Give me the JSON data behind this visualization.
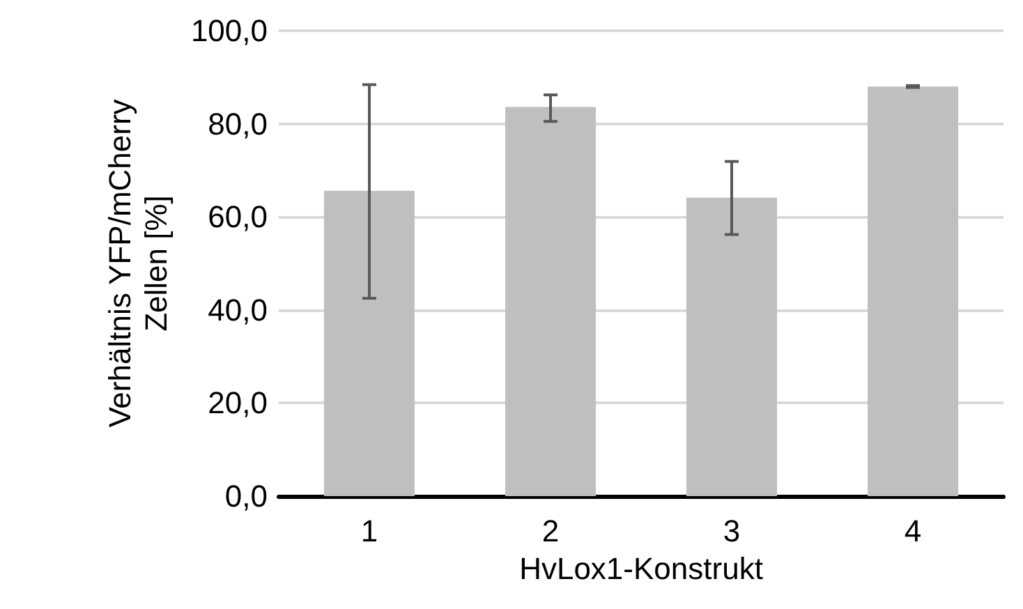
{
  "chart_data": {
    "type": "bar",
    "xlabel": "HvLox1-Konstrukt",
    "ylabel": "Verhältnis YFP/mCherry\nZellen [%]",
    "categories": [
      "1",
      "2",
      "3",
      "4"
    ],
    "values": [
      65.6,
      83.6,
      64.1,
      88.0
    ],
    "errors": [
      [
        42.5,
        88.4
      ],
      [
        80.5,
        86.2
      ],
      [
        56.2,
        71.9
      ],
      [
        87.8,
        88.2
      ]
    ],
    "color": "#bfbfbf",
    "ylim": [
      0,
      100
    ],
    "yticks": [
      {
        "value": 0,
        "label": "0,0"
      },
      {
        "value": 20,
        "label": "20,0"
      },
      {
        "value": 40,
        "label": "40,0"
      },
      {
        "value": 60,
        "label": "60,0"
      },
      {
        "value": 80,
        "label": "80,0"
      },
      {
        "value": 100,
        "label": "100,0"
      }
    ],
    "grid": "y"
  }
}
